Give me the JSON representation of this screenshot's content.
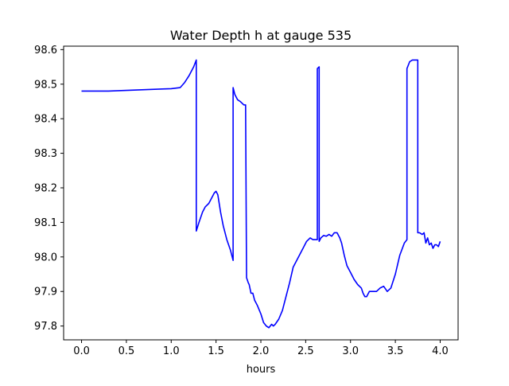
{
  "chart_data": {
    "type": "line",
    "title": "Water Depth h at gauge 535",
    "xlabel": "hours",
    "ylabel": "",
    "xlim": [
      -0.2,
      4.2
    ],
    "ylim": [
      97.76,
      98.61
    ],
    "xticks": [
      0.0,
      0.5,
      1.0,
      1.5,
      2.0,
      2.5,
      3.0,
      3.5,
      4.0
    ],
    "xtick_labels": [
      "0.0",
      "0.5",
      "1.0",
      "1.5",
      "2.0",
      "2.5",
      "3.0",
      "3.5",
      "4.0"
    ],
    "yticks": [
      97.8,
      97.9,
      98.0,
      98.1,
      98.2,
      98.3,
      98.4,
      98.5,
      98.6
    ],
    "ytick_labels": [
      "97.8",
      "97.9",
      "98.0",
      "98.1",
      "98.2",
      "98.3",
      "98.4",
      "98.5",
      "98.6"
    ],
    "grid": false,
    "line_color": "#0000ff",
    "series": [
      {
        "x": [
          0.0,
          0.1,
          0.3,
          0.5,
          0.7,
          0.9,
          1.0,
          1.1,
          1.15,
          1.2,
          1.25,
          1.28,
          1.28,
          1.31,
          1.35,
          1.38,
          1.42,
          1.45,
          1.48,
          1.5,
          1.52,
          1.55,
          1.58,
          1.62,
          1.66,
          1.69,
          1.69,
          1.71,
          1.74,
          1.77,
          1.81,
          1.83,
          1.84,
          1.86,
          1.87,
          1.89,
          1.91,
          1.93,
          1.96,
          2.0,
          2.03,
          2.06,
          2.09,
          2.12,
          2.14,
          2.16,
          2.2,
          2.24,
          2.28,
          2.32,
          2.36,
          2.39,
          2.43,
          2.47,
          2.51,
          2.55,
          2.58,
          2.61,
          2.63,
          2.63,
          2.65,
          2.65,
          2.67,
          2.7,
          2.73,
          2.76,
          2.79,
          2.82,
          2.85,
          2.88,
          2.9,
          2.93,
          2.96,
          3.0,
          3.04,
          3.08,
          3.12,
          3.14,
          3.16,
          3.18,
          3.21,
          3.25,
          3.29,
          3.33,
          3.37,
          3.41,
          3.45,
          3.5,
          3.55,
          3.6,
          3.63,
          3.63,
          3.66,
          3.69,
          3.73,
          3.75,
          3.75,
          3.77,
          3.8,
          3.82,
          3.84,
          3.86,
          3.88,
          3.9,
          3.92,
          3.94,
          3.96,
          3.98,
          4.0
        ],
        "y": [
          98.48,
          98.48,
          98.48,
          98.482,
          98.484,
          98.486,
          98.487,
          98.49,
          98.505,
          98.525,
          98.55,
          98.57,
          98.075,
          98.1,
          98.13,
          98.145,
          98.155,
          98.17,
          98.185,
          98.19,
          98.18,
          98.13,
          98.09,
          98.05,
          98.02,
          97.99,
          98.49,
          98.47,
          98.455,
          98.45,
          98.44,
          98.44,
          97.94,
          97.925,
          97.92,
          97.895,
          97.895,
          97.875,
          97.86,
          97.835,
          97.81,
          97.8,
          97.795,
          97.805,
          97.8,
          97.805,
          97.82,
          97.845,
          97.885,
          97.925,
          97.97,
          97.985,
          98.005,
          98.025,
          98.045,
          98.055,
          98.05,
          98.05,
          98.05,
          98.545,
          98.55,
          98.045,
          98.055,
          98.062,
          98.06,
          98.065,
          98.06,
          98.07,
          98.07,
          98.055,
          98.04,
          98.005,
          97.975,
          97.955,
          97.935,
          97.92,
          97.91,
          97.895,
          97.885,
          97.885,
          97.9,
          97.9,
          97.9,
          97.91,
          97.915,
          97.9,
          97.91,
          97.95,
          98.005,
          98.04,
          98.05,
          98.545,
          98.565,
          98.57,
          98.57,
          98.57,
          98.07,
          98.07,
          98.065,
          98.07,
          98.04,
          98.055,
          98.035,
          98.04,
          98.025,
          98.035,
          98.035,
          98.03,
          98.045
        ]
      }
    ]
  }
}
